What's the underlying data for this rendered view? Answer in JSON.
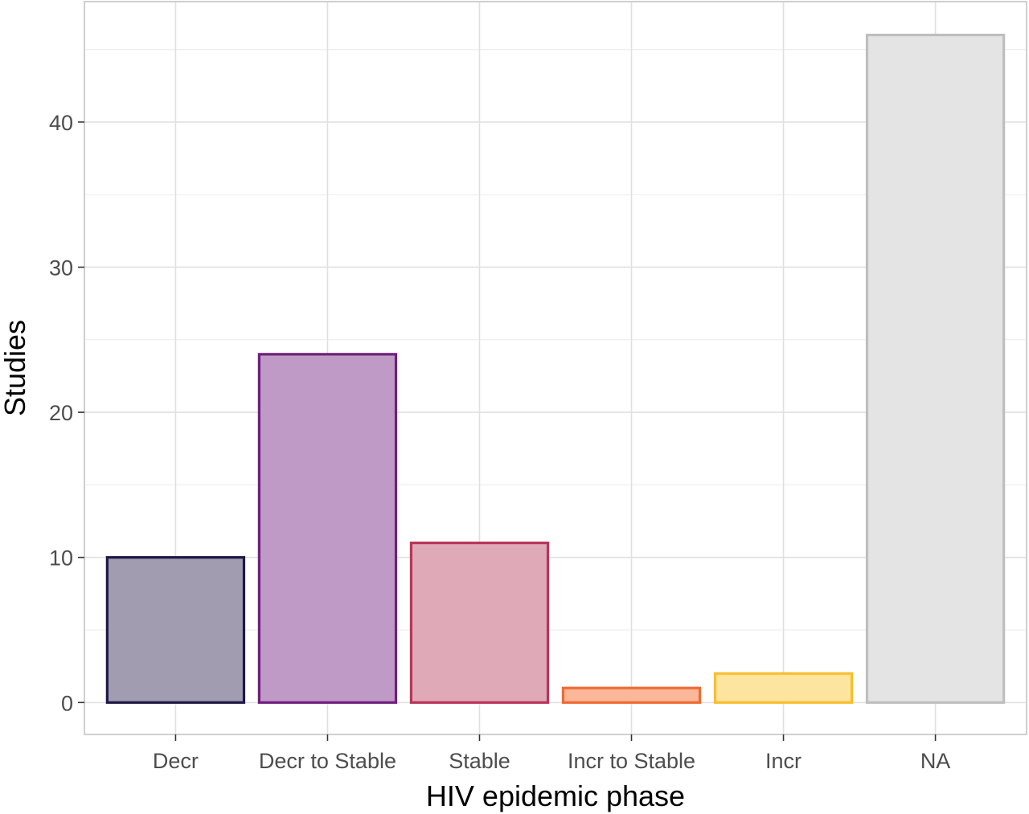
{
  "chart_data": {
    "type": "bar",
    "xlabel": "HIV epidemic phase",
    "ylabel": "Studies",
    "categories": [
      "Decr",
      "Decr to Stable",
      "Stable",
      "Incr to Stable",
      "Incr",
      "NA"
    ],
    "values": [
      10,
      24,
      11,
      1,
      2,
      46
    ],
    "ylim": [
      -2.2,
      48.3
    ],
    "yticks": [
      0,
      10,
      20,
      30,
      40
    ],
    "grid": true,
    "legend": "none",
    "colors": {
      "fills": [
        "#a19cb0",
        "#c09ac6",
        "#e0a9b8",
        "#fbb79a",
        "#fde49f",
        "#e4e4e4"
      ],
      "strokes": [
        "#1d1845",
        "#6e1f7c",
        "#b8345a",
        "#ef6a32",
        "#f9bd2e",
        "#bebebe"
      ],
      "grid_major": "#e0e0e0",
      "grid_minor": "#efefef",
      "panel_border": "#cfcfcf"
    }
  }
}
